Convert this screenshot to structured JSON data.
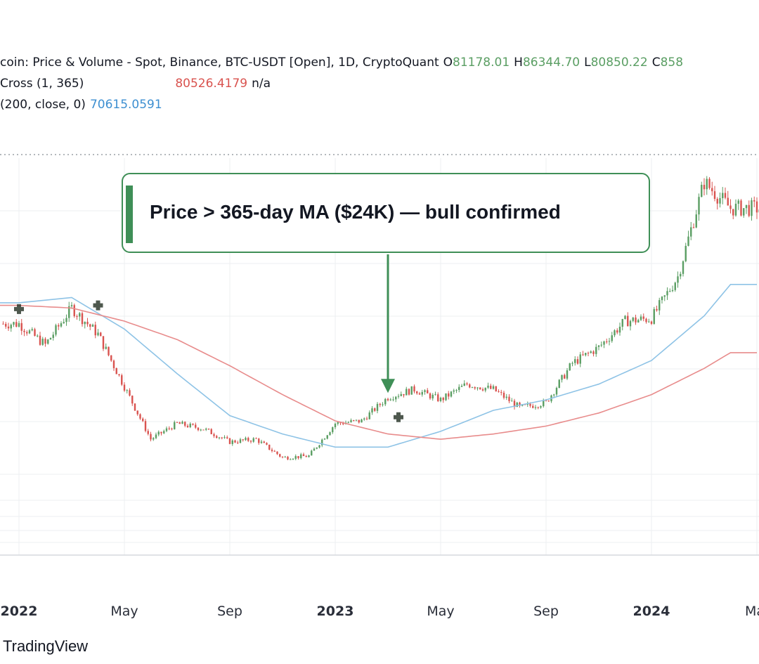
{
  "legend": {
    "title": "coin: Price & Volume - Spot, Binance, BTC-USDT [Open], 1D, CryptoQuant",
    "o_prefix": "O",
    "o_value": "81178.01",
    "h_prefix": "H",
    "h_value": "86344.70",
    "l_prefix": "L",
    "l_value": "80850.22",
    "c_prefix": "C",
    "c_value": "858",
    "ma_cross_label": "Cross (1, 365)",
    "ma_cross_value": "80526.4179",
    "ma_cross_extra": "n/a",
    "ma200_label": "(200, close, 0)",
    "ma200_value": "70615.0591"
  },
  "callout": {
    "text": "Price > 365-day MA ($24K) — bull confirmed"
  },
  "brand": "TradingView",
  "colors": {
    "up": "#5a9e63",
    "down": "#d9534f",
    "ma365": "#e88c8c",
    "ma200": "#8ec3e6",
    "callout": "#3f8f57",
    "grid": "#eceff2",
    "cross_marker": "#2f3b2f"
  },
  "chart_data": {
    "type": "line",
    "x_tick_labels": [
      "2022",
      "May",
      "Sep",
      "2023",
      "May",
      "Sep",
      "2024",
      "Ma"
    ],
    "series": [
      {
        "x": [
          "2022-01",
          "2022-02",
          "2022-03",
          "2022-04",
          "2022-05",
          "2022-06",
          "2022-07",
          "2022-08",
          "2022-09",
          "2022-10",
          "2022-11",
          "2022-12",
          "2023-01",
          "2023-02",
          "2023-03",
          "2023-04",
          "2023-05",
          "2023-06",
          "2023-07",
          "2023-08",
          "2023-09",
          "2023-10",
          "2023-11",
          "2023-12",
          "2024-01",
          "2024-02",
          "2024-03",
          "2024-04"
        ],
        "values": [
          42000,
          38000,
          45000,
          40000,
          30000,
          20000,
          23000,
          22000,
          19500,
          20000,
          16500,
          16800,
          23000,
          23500,
          28000,
          29500,
          27500,
          30500,
          29500,
          26000,
          27000,
          34500,
          37500,
          42500,
          43000,
          51000,
          69000,
          64000
        ]
      },
      {
        "name": "365-day MA",
        "x": [
          "2022-01",
          "2022-03",
          "2022-05",
          "2022-07",
          "2022-09",
          "2022-11",
          "2023-01",
          "2023-03",
          "2023-05",
          "2023-07",
          "2023-09",
          "2023-11",
          "2024-01",
          "2024-03",
          "2024-04"
        ],
        "values": [
          45500,
          45000,
          42500,
          39000,
          34000,
          28500,
          23500,
          21000,
          20000,
          21000,
          22500,
          25000,
          28500,
          33500,
          36500
        ]
      },
      {
        "name": "200-day MA",
        "x": [
          "2022-01",
          "2022-03",
          "2022-05",
          "2022-07",
          "2022-09",
          "2022-11",
          "2023-01",
          "2023-03",
          "2023-05",
          "2023-07",
          "2023-09",
          "2023-11",
          "2024-01",
          "2024-03",
          "2024-04"
        ],
        "values": [
          46000,
          47000,
          41000,
          32500,
          24500,
          21000,
          18500,
          18500,
          21500,
          25500,
          27500,
          30500,
          35000,
          43500,
          49500
        ]
      }
    ],
    "annotations": [
      {
        "text": "Price > 365-day MA ($24K) — bull confirmed",
        "x": "2023-03",
        "y": 24000
      }
    ]
  }
}
